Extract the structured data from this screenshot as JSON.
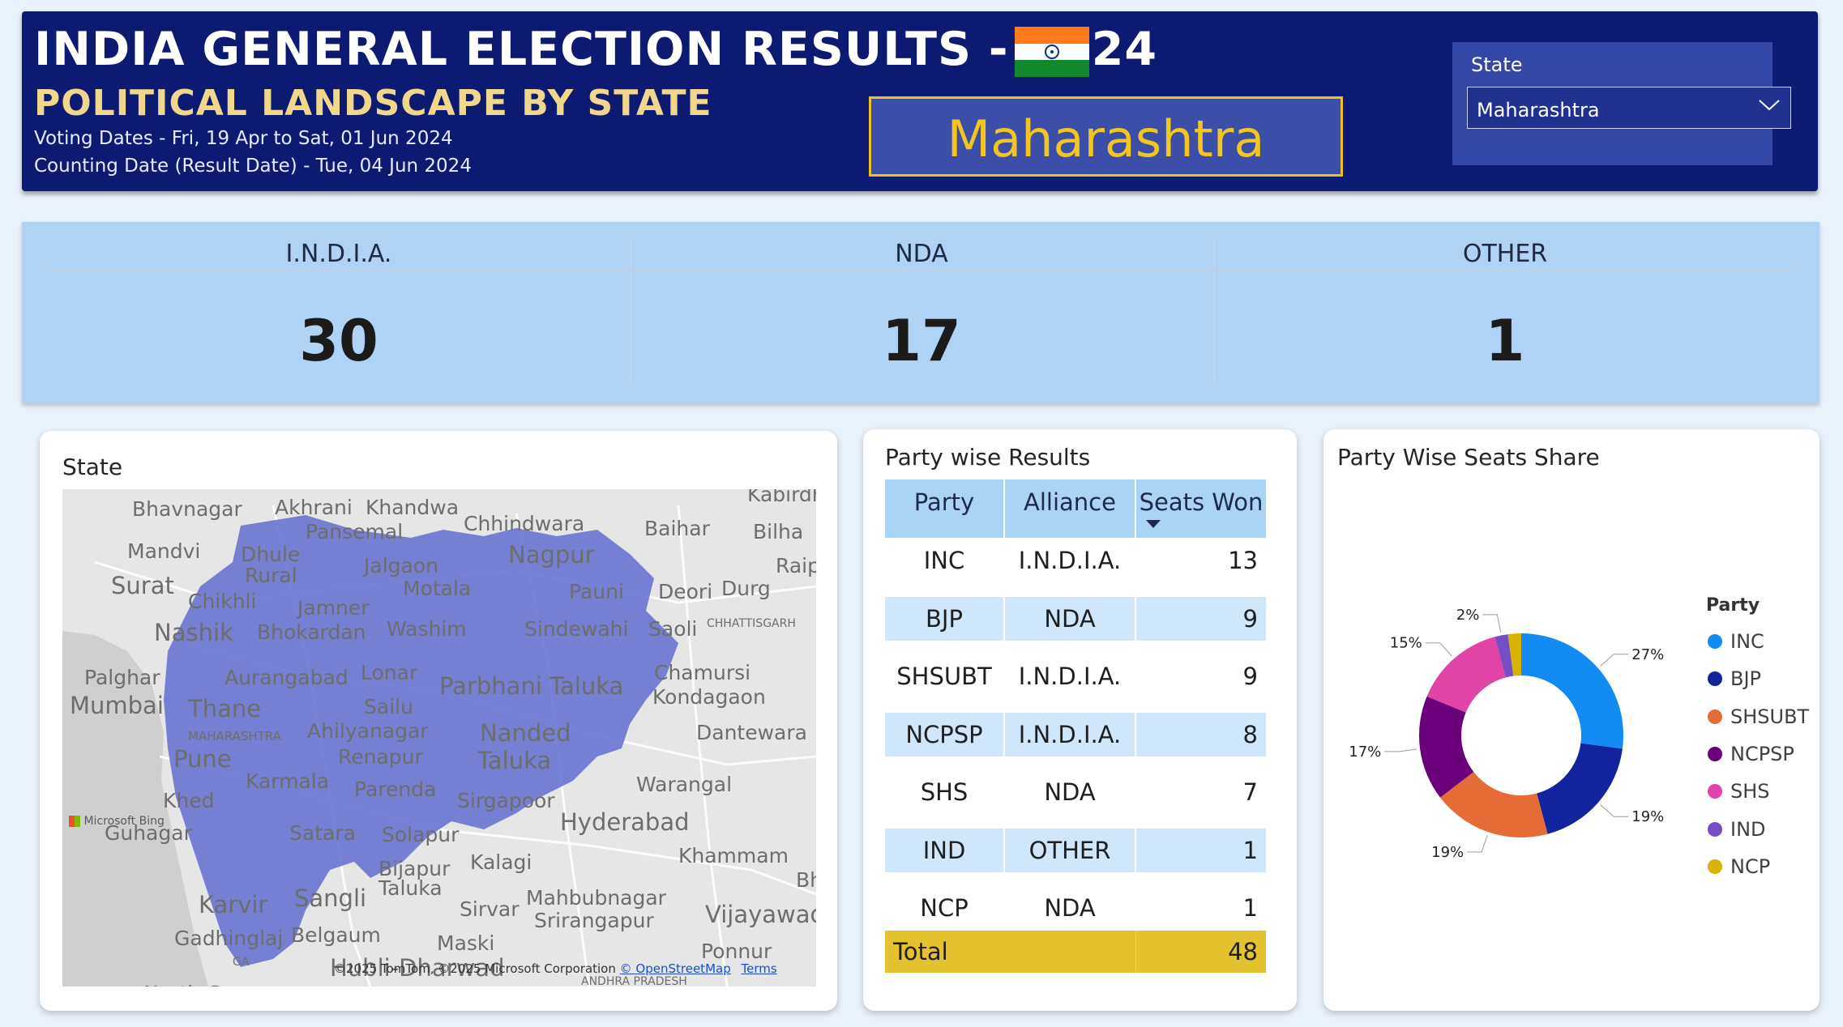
{
  "header": {
    "title": "INDIA GENERAL ELECTION RESULTS - 2024",
    "subtitle": "POLITICAL LANDSCAPE BY STATE",
    "voting_dates": "Voting Dates - Fri, 19 Apr to Sat, 01 Jun 2024",
    "counting_date": "Counting Date (Result Date) - Tue, 04 Jun 2024",
    "selected_state": "Maharashtra",
    "flag_icon": "india-flag-icon",
    "colors": {
      "background": "#0d1a72",
      "accent": "#f3c51e"
    }
  },
  "slicer": {
    "label": "State",
    "value": "Maharashtra",
    "icon": "chevron-down-icon"
  },
  "kpis": [
    {
      "label": "I.N.D.I.A.",
      "value": "30"
    },
    {
      "label": "NDA",
      "value": "17"
    },
    {
      "label": "OTHER",
      "value": "1"
    }
  ],
  "map": {
    "title": "State",
    "highlight_color": "#6d76d0",
    "labels": [
      "Bhavnagar",
      "Akhrani",
      "Khandwa",
      "Kabirdham",
      "Mandvi",
      "Dhule",
      "Pansemal",
      "Chhindwara",
      "Baihar",
      "Bilha",
      "Surat",
      "Rural",
      "Jalgaon",
      "Nagpur",
      "Raipur",
      "Chikhli",
      "Motala",
      "Pauni",
      "Deori",
      "Durg",
      "Jamner",
      "CHHATTISGARH",
      "Nashik",
      "Bhokardan",
      "Washim",
      "Sindewahi",
      "Saoli",
      "Palghar",
      "Aurangabad",
      "Lonar",
      "Chamursi",
      "Mumbai",
      "Thane",
      "Sailu",
      "Parbhani Taluka",
      "Kondagaon",
      "MAHARASHTRA",
      "Ahilyanagar",
      "Nanded",
      "Dantewara",
      "Pune",
      "Renapur",
      "Taluka",
      "Karmala",
      "Parenda",
      "Warangal",
      "Khed",
      "Sirgapoor",
      "Hyderabad",
      "Guhagar",
      "Satara",
      "Solapur",
      "Khammam",
      "Bijapur",
      "Kalagi",
      "Bhimavaram",
      "Taluka",
      "Karvir",
      "Sangli",
      "Sirvar",
      "Mahbubnagar",
      "Srirangapur",
      "Vijayawada",
      "Gadhinglaj",
      "Belgaum",
      "Maski",
      "Ponnur",
      "North Goa",
      "Hubli-Dharwad",
      "ANDHRA PRADESH",
      "GA"
    ],
    "bing_logo": "Microsoft Bing",
    "attribution": "©2025 TomTom, ©2025 Microsoft Corporation",
    "osm": "© OpenStreetMap",
    "terms": "Terms"
  },
  "table": {
    "title": "Party wise Results",
    "headers": [
      "Party",
      "Alliance",
      "Seats Won"
    ],
    "sort_icon": "sort-desc-icon",
    "rows": [
      {
        "party": "INC",
        "alliance": "I.N.D.I.A.",
        "seats": "13"
      },
      {
        "party": "BJP",
        "alliance": "NDA",
        "seats": "9"
      },
      {
        "party": "SHSUBT",
        "alliance": "I.N.D.I.A.",
        "seats": "9"
      },
      {
        "party": "NCPSP",
        "alliance": "I.N.D.I.A.",
        "seats": "8"
      },
      {
        "party": "SHS",
        "alliance": "NDA",
        "seats": "7"
      },
      {
        "party": "IND",
        "alliance": "OTHER",
        "seats": "1"
      },
      {
        "party": "NCP",
        "alliance": "NDA",
        "seats": "1"
      }
    ],
    "total": {
      "label": "Total",
      "seats": "48"
    },
    "colors": {
      "header": "#a9d4f5",
      "stripe": "#cfe6fb",
      "total": "#e4c22f"
    }
  },
  "donut": {
    "title": "Party Wise Seats Share",
    "legend_title": "Party"
  },
  "chart_data": {
    "type": "pie",
    "variant": "donut",
    "title": "Party Wise Seats Share",
    "legend_title": "Party",
    "legend_position": "right",
    "categories": [
      "INC",
      "BJP",
      "SHSUBT",
      "NCPSP",
      "SHS",
      "IND",
      "NCP"
    ],
    "values": [
      13,
      9,
      9,
      8,
      7,
      1,
      1
    ],
    "percent_labels": [
      "27%",
      "19%",
      "19%",
      "17%",
      "15%",
      "2%",
      ""
    ],
    "colors": [
      "#128bf2",
      "#12239e",
      "#e66c37",
      "#6b007b",
      "#e044a7",
      "#744ec2",
      "#d9b300"
    ]
  }
}
